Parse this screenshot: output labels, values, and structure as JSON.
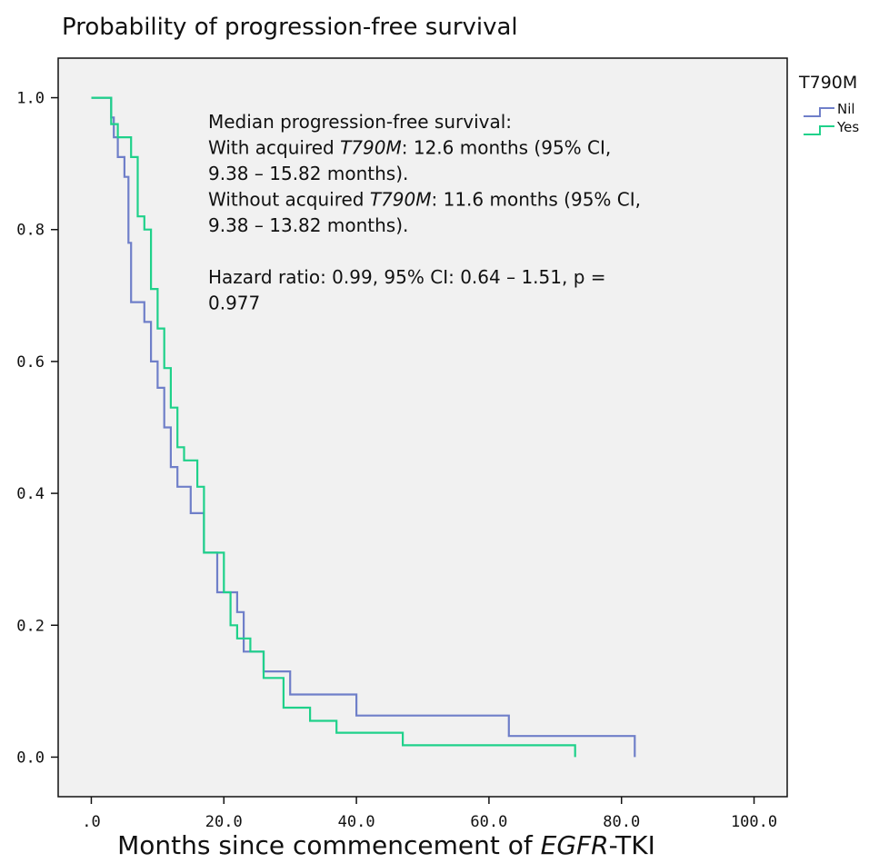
{
  "chart_data": {
    "type": "line",
    "title": "Probability of progression-free survival",
    "xlabel": {
      "prefix": "Months since commencement of ",
      "italic": "EGFR",
      "suffix": "-TKI"
    },
    "ylabel": "",
    "xlim": [
      -5,
      105
    ],
    "ylim": [
      -0.06,
      1.06
    ],
    "xticks": [
      0,
      20,
      40,
      60,
      80,
      100
    ],
    "xtick_labels": [
      ".0",
      "20.0",
      "40.0",
      "60.0",
      "80.0",
      "100.0"
    ],
    "yticks": [
      0,
      0.2,
      0.4,
      0.6,
      0.8,
      1.0
    ],
    "ytick_labels": [
      "0.0",
      "0.2",
      "0.4",
      "0.6",
      "0.8",
      "1.0"
    ],
    "grid": false,
    "legend": {
      "title": "T790M",
      "position": "top-right outside"
    },
    "series": [
      {
        "name": "Nil",
        "color": "#6f7fc9",
        "step": true,
        "x": [
          0,
          3.0,
          3.4,
          4.0,
          5.0,
          5.6,
          6.0,
          7.0,
          8.0,
          9.0,
          10.0,
          11.0,
          12.0,
          13.0,
          15.0,
          17.0,
          19.0,
          22.0,
          23.0,
          25.0,
          26.0,
          30.0,
          40.0,
          63.0,
          82.0
        ],
        "y": [
          1.0,
          0.97,
          0.94,
          0.91,
          0.88,
          0.78,
          0.69,
          0.69,
          0.66,
          0.6,
          0.56,
          0.5,
          0.44,
          0.41,
          0.37,
          0.31,
          0.25,
          0.22,
          0.16,
          0.16,
          0.13,
          0.095,
          0.063,
          0.032,
          0.0
        ]
      },
      {
        "name": "Yes",
        "color": "#1fd18a",
        "step": true,
        "x": [
          0,
          3.0,
          4.0,
          6.0,
          7.0,
          8.0,
          9.0,
          10.0,
          11.0,
          12.0,
          13.0,
          14.0,
          16.0,
          17.0,
          20.0,
          21.0,
          22.0,
          24.0,
          26.0,
          29.0,
          33.0,
          37.0,
          47.0,
          73.0
        ],
        "y": [
          1.0,
          0.96,
          0.94,
          0.91,
          0.82,
          0.8,
          0.71,
          0.65,
          0.59,
          0.53,
          0.47,
          0.45,
          0.41,
          0.31,
          0.25,
          0.2,
          0.18,
          0.16,
          0.12,
          0.075,
          0.055,
          0.037,
          0.018,
          0.0
        ]
      }
    ],
    "annotations": [
      [
        {
          "t": "Median progression-free survival:"
        }
      ],
      [
        {
          "t": "With acquired "
        },
        {
          "t": "T790M",
          "i": true
        },
        {
          "t": ": 12.6 months (95% CI,"
        }
      ],
      [
        {
          "t": "9.38 – 15.82 months)."
        }
      ],
      [
        {
          "t": "Without acquired "
        },
        {
          "t": "T790M",
          "i": true
        },
        {
          "t": ": 11.6 months (95% CI,"
        }
      ],
      [
        {
          "t": "9.38 – 13.82 months)."
        }
      ],
      [
        {
          "t": ""
        }
      ],
      [
        {
          "t": "Hazard ratio: 0.99, 95% CI: 0.64 – 1.51, p ="
        }
      ],
      [
        {
          "t": "0.977"
        }
      ]
    ],
    "colors": {
      "plot_bg": "#f1f1f1",
      "frame": "#111111"
    }
  }
}
